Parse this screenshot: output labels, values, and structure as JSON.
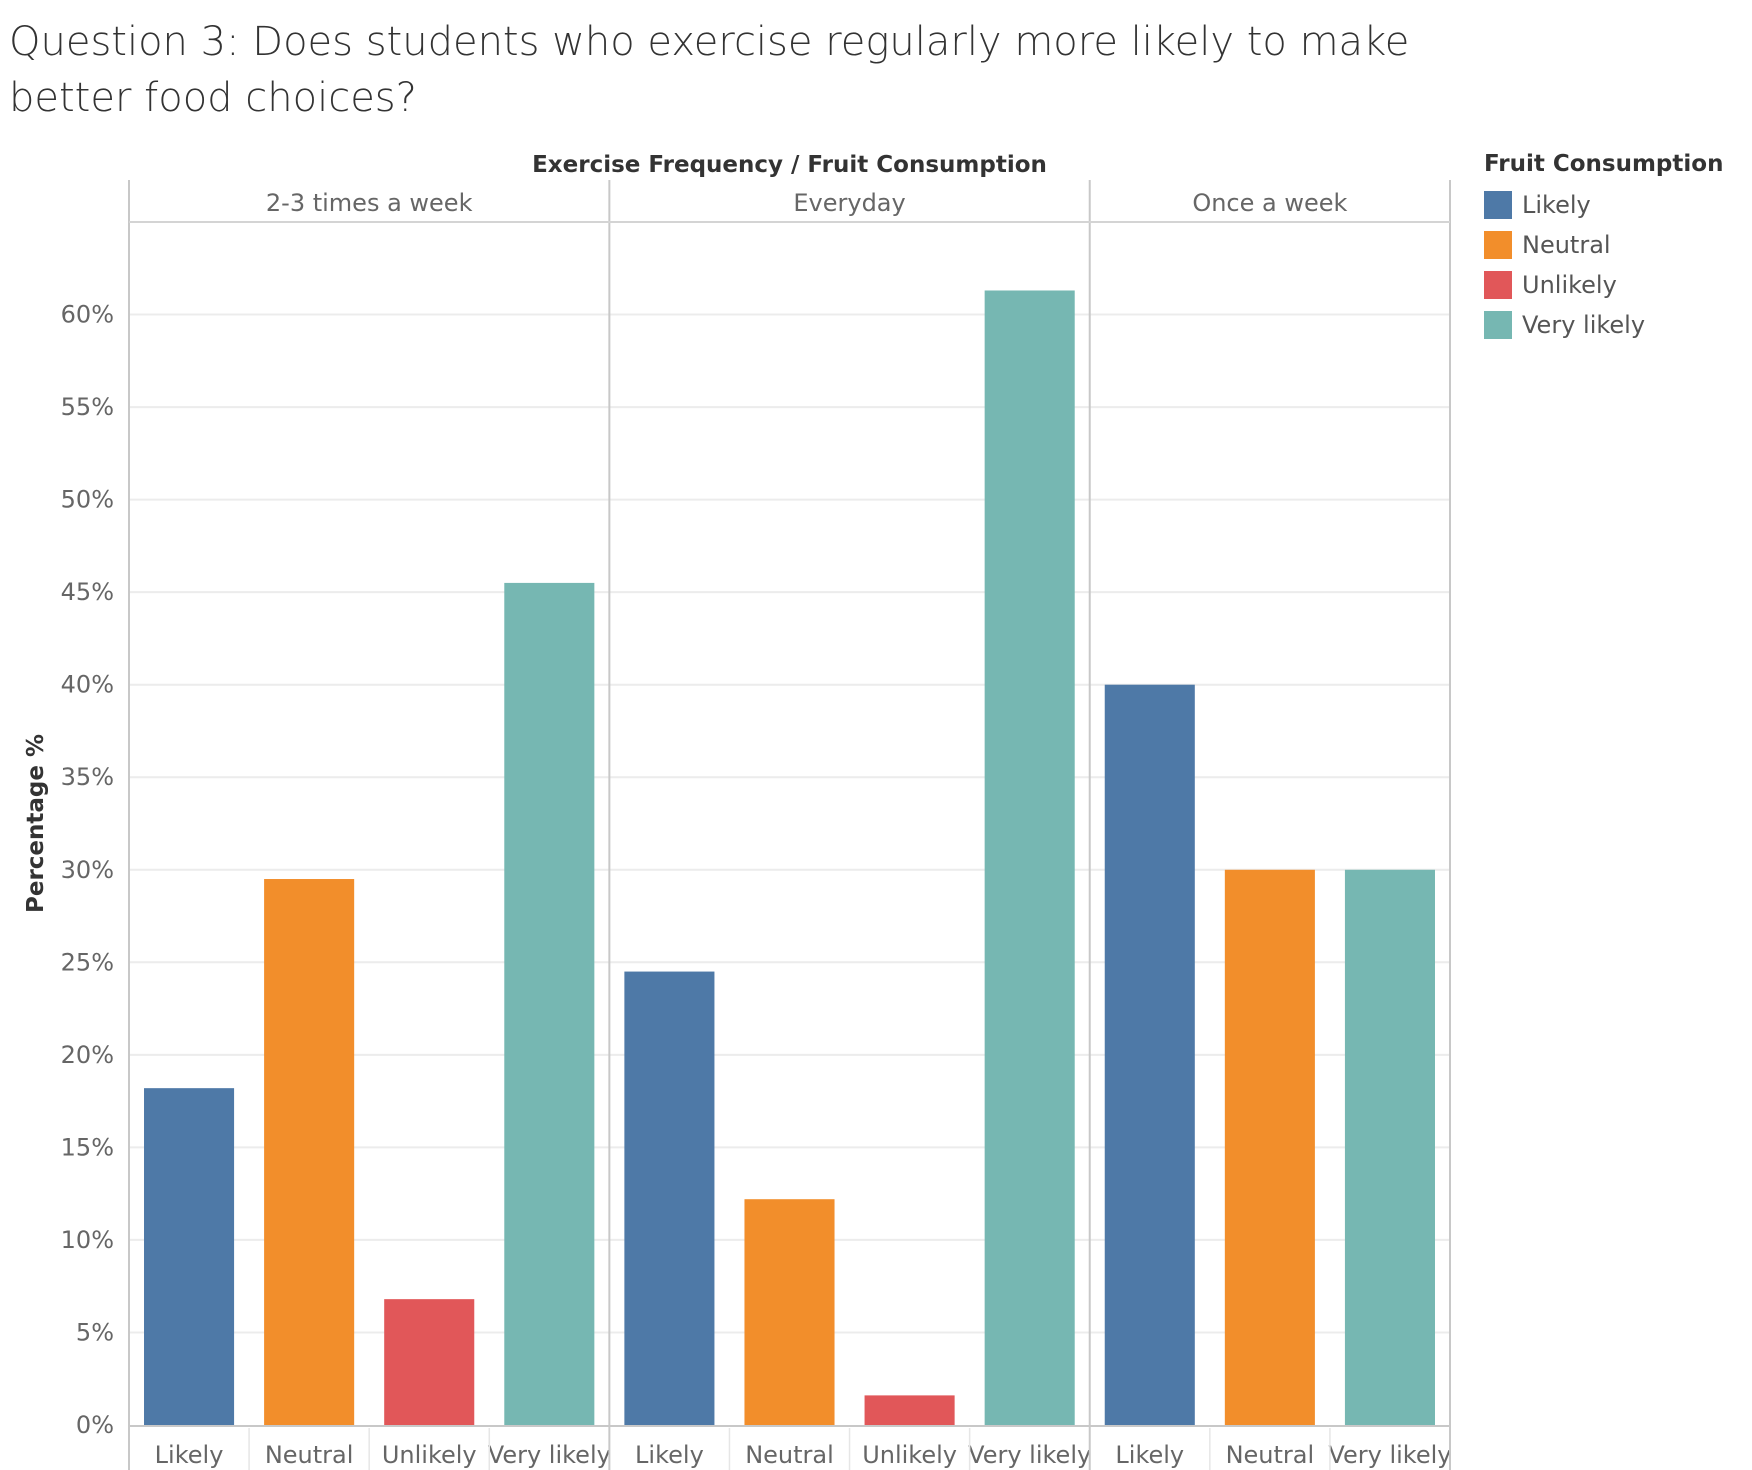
{
  "title": "Question 3: Does students who exercise regularly more likely to make better food choices?",
  "chart_data": {
    "type": "bar",
    "header": "Exercise Frequency  /  Fruit Consumption",
    "ylabel": "Percentage %",
    "ylim": [
      0,
      65
    ],
    "yticks": [
      0,
      5,
      10,
      15,
      20,
      25,
      30,
      35,
      40,
      45,
      50,
      55,
      60
    ],
    "ytick_labels": [
      "0%",
      "5%",
      "10%",
      "15%",
      "20%",
      "25%",
      "30%",
      "35%",
      "40%",
      "45%",
      "50%",
      "55%",
      "60%"
    ],
    "grid": true,
    "legend_position": "right",
    "legend_title": "Fruit Consumption",
    "legend": [
      {
        "label": "Likely",
        "color": "#4e79a7"
      },
      {
        "label": "Neutral",
        "color": "#f28e2b"
      },
      {
        "label": "Unlikely",
        "color": "#e15759"
      },
      {
        "label": "Very likely",
        "color": "#76b7b2"
      }
    ],
    "panels": [
      {
        "name": "2-3 times a week",
        "categories": [
          "Likely",
          "Neutral",
          "Unlikely",
          "Very likely"
        ],
        "values": [
          18.2,
          29.5,
          6.8,
          45.5
        ]
      },
      {
        "name": "Everyday",
        "categories": [
          "Likely",
          "Neutral",
          "Unlikely",
          "Very likely"
        ],
        "values": [
          24.5,
          12.2,
          1.6,
          61.3
        ]
      },
      {
        "name": "Once a week",
        "categories": [
          "Likely",
          "Neutral",
          "Very likely"
        ],
        "values": [
          40.0,
          30.0,
          30.0
        ]
      }
    ]
  }
}
